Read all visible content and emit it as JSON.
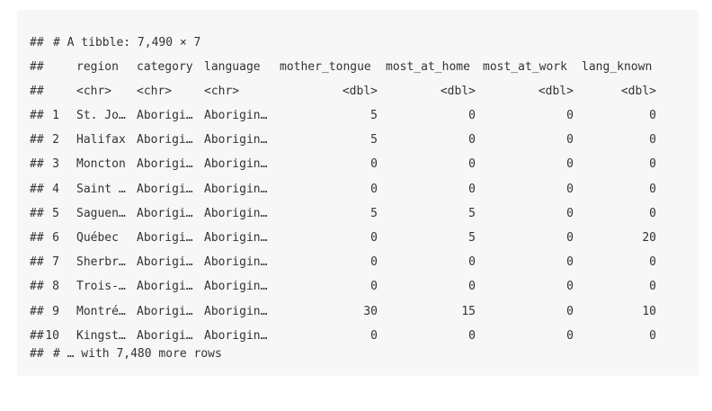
{
  "output": {
    "prefix": "##",
    "header": "# A tibble: 7,490 × 7",
    "columns": [
      "region",
      "category",
      "language",
      "mother_tongue",
      "most_at_home",
      "most_at_work",
      "lang_known"
    ],
    "types": [
      "<chr>",
      "<chr>",
      "<chr>",
      "<dbl>",
      "<dbl>",
      "<dbl>",
      "<dbl>"
    ],
    "rows": [
      [
        "1",
        "St. Jo…",
        "Aborigi…",
        "Aborigin…",
        "5",
        "0",
        "0",
        "0"
      ],
      [
        "2",
        "Halifax",
        "Aborigi…",
        "Aborigin…",
        "5",
        "0",
        "0",
        "0"
      ],
      [
        "3",
        "Moncton",
        "Aborigi…",
        "Aborigin…",
        "0",
        "0",
        "0",
        "0"
      ],
      [
        "4",
        "Saint …",
        "Aborigi…",
        "Aborigin…",
        "0",
        "0",
        "0",
        "0"
      ],
      [
        "5",
        "Saguen…",
        "Aborigi…",
        "Aborigin…",
        "5",
        "5",
        "0",
        "0"
      ],
      [
        "6",
        "Québec",
        "Aborigi…",
        "Aborigin…",
        "0",
        "5",
        "0",
        "20"
      ],
      [
        "7",
        "Sherbr…",
        "Aborigi…",
        "Aborigin…",
        "0",
        "0",
        "0",
        "0"
      ],
      [
        "8",
        "Trois-…",
        "Aborigi…",
        "Aborigin…",
        "0",
        "0",
        "0",
        "0"
      ],
      [
        "9",
        "Montré…",
        "Aborigi…",
        "Aborigin…",
        "30",
        "15",
        "0",
        "10"
      ],
      [
        "10",
        "Kingst…",
        "Aborigi…",
        "Aborigin…",
        "0",
        "0",
        "0",
        "0"
      ]
    ],
    "footer": "# … with 7,480 more rows"
  }
}
